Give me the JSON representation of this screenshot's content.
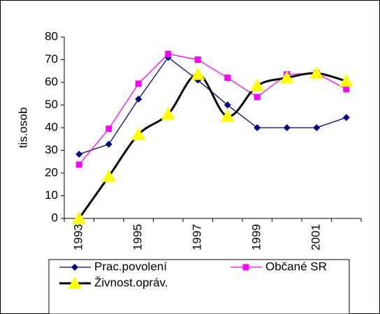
{
  "chart_data": {
    "type": "line",
    "y_label": "tis.osob",
    "categories": [
      "1993",
      null,
      "1995",
      null,
      "1997",
      null,
      "1999",
      null,
      "2001",
      null
    ],
    "ylim": [
      0,
      80
    ],
    "yticks": [
      0,
      10,
      20,
      30,
      40,
      50,
      60,
      70,
      80
    ],
    "legend": "bottom",
    "series": [
      {
        "name": "Prac.povolení",
        "color": "#000080",
        "marker": "diamond",
        "smooth": false,
        "values": [
          28.3,
          32.7,
          52.6,
          71,
          61,
          50,
          40,
          40,
          40,
          44.5
        ]
      },
      {
        "name": "Občané SR",
        "color": "#ff00ff",
        "marker": "square",
        "smooth": false,
        "values": [
          23.7,
          39.5,
          59.4,
          72.5,
          70,
          62,
          53.5,
          63.5,
          64,
          57
        ]
      },
      {
        "name": "Živnost.opráv.",
        "color": "#000000",
        "marker": "triangle",
        "marker_color": "#ffff00",
        "smooth": true,
        "values": [
          0,
          18.5,
          37,
          46,
          63.5,
          45,
          58.5,
          62,
          64,
          60.5
        ]
      }
    ]
  }
}
